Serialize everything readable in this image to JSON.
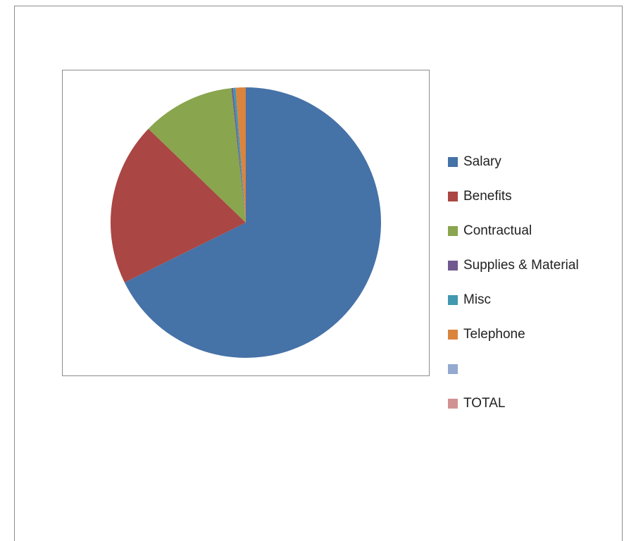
{
  "chart_data": {
    "type": "pie",
    "title": "",
    "series": [
      {
        "values": [
          67.7,
          19.5,
          11.1,
          0.2,
          0.3,
          1.2,
          0,
          0
        ]
      }
    ],
    "categories": [
      "Salary",
      "Benefits",
      "Contractual",
      "Supplies & Material",
      "Misc",
      "Telephone",
      "",
      "TOTAL"
    ],
    "colors": [
      "#4572a7",
      "#aa4643",
      "#89a54e",
      "#71588f",
      "#4198af",
      "#db843d",
      "#93a9cf",
      "#d19392"
    ],
    "legend_position": "right",
    "start_angle_deg": 0,
    "direction": "clockwise"
  }
}
